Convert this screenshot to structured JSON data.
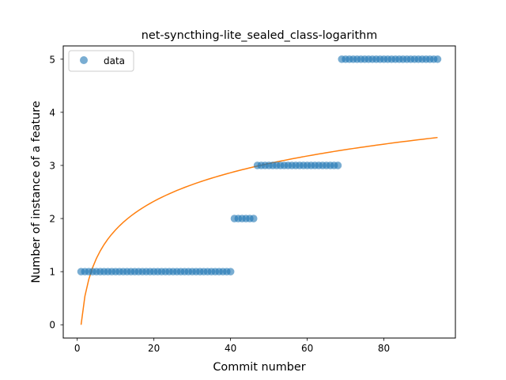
{
  "chart_data": {
    "type": "scatter",
    "title": "net-syncthing-lite_sealed_class-logarithm",
    "xlabel": "Commit number",
    "ylabel": "Number of instance of a feature",
    "xlim": [
      -3.65,
      98.65
    ],
    "ylim": [
      -0.25,
      5.25
    ],
    "xticks": [
      0,
      20,
      40,
      60,
      80
    ],
    "yticks": [
      0,
      1,
      2,
      3,
      4,
      5
    ],
    "grid": false,
    "legend": {
      "position": "upper-left",
      "entries": [
        "data"
      ]
    },
    "colors": {
      "data": "#1f77b4",
      "fit": "#ff7f0e"
    },
    "series": [
      {
        "name": "data",
        "kind": "scatter",
        "segments": [
          {
            "x_start": 1,
            "x_end": 40,
            "y": 1
          },
          {
            "x_start": 41,
            "x_end": 46,
            "y": 2
          },
          {
            "x_start": 47,
            "x_end": 68,
            "y": 3
          },
          {
            "x_start": 69,
            "x_end": 94,
            "y": 5
          }
        ]
      },
      {
        "kind": "line",
        "model": "a*ln(x)",
        "a": 0.776,
        "x_range": [
          1,
          94
        ]
      }
    ]
  }
}
